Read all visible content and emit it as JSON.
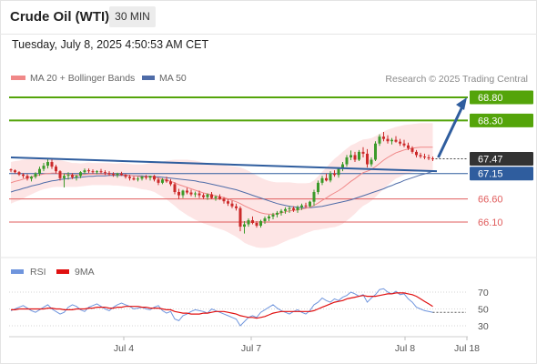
{
  "header": {
    "title": "Crude Oil (WTI)",
    "timeframe": "30 MIN"
  },
  "timestamp": "Tuesday, July 8, 2025 4:50:53 AM CET",
  "legend": {
    "ma20": "MA 20 + Bollinger Bands",
    "ma50": "MA 50",
    "rsi": "RSI",
    "rsi_ma": "9MA"
  },
  "credit": "Research © 2025 Trading Central",
  "colors": {
    "resistance": "#54a40a",
    "support": "#e05c5c",
    "arrow": "#2f5d9e",
    "ma20": "#f08888",
    "ma50": "#4f6ca8",
    "bollinger_fill": "#fde0e0",
    "rsi": "#6f95dd",
    "rsi_ma": "#e01010",
    "candle_up": "#3c9a2a",
    "candle_down": "#cc2a2a",
    "current_price_bg": "#333333",
    "pivot_bg": "#2f5d9e"
  },
  "chart_data": {
    "type": "candlestick",
    "title": "Crude Oil (WTI)",
    "timeframe": "30 MIN",
    "y_range": [
      65.7,
      69.0
    ],
    "x_ticks": [
      "Jul 4",
      "Jul 7",
      "Jul 8",
      "Jul 18"
    ],
    "price_levels": [
      {
        "label": "68.80",
        "value": 68.8,
        "kind": "resistance"
      },
      {
        "label": "68.30",
        "value": 68.3,
        "kind": "resistance"
      },
      {
        "label": "67.47",
        "value": 67.47,
        "kind": "current"
      },
      {
        "label": "67.15",
        "value": 67.15,
        "kind": "pivot"
      },
      {
        "label": "66.60",
        "value": 66.6,
        "kind": "support"
      },
      {
        "label": "66.10",
        "value": 66.1,
        "kind": "support"
      }
    ],
    "trendline": {
      "from": [
        0,
        67.5
      ],
      "to": [
        120,
        67.2
      ]
    },
    "forecast_arrow": {
      "from": [
        120,
        67.5
      ],
      "to": [
        131,
        68.8
      ]
    },
    "ohlc": [
      [
        67.24,
        67.26,
        67.18,
        67.22
      ],
      [
        67.22,
        67.24,
        67.15,
        67.18
      ],
      [
        67.18,
        67.2,
        67.1,
        67.13
      ],
      [
        67.13,
        67.16,
        67.05,
        67.1
      ],
      [
        67.1,
        67.14,
        67.0,
        67.04
      ],
      [
        67.04,
        67.1,
        66.98,
        67.08
      ],
      [
        67.08,
        67.18,
        67.04,
        67.15
      ],
      [
        67.15,
        67.3,
        67.1,
        67.25
      ],
      [
        67.25,
        67.38,
        67.2,
        67.32
      ],
      [
        67.32,
        67.48,
        67.26,
        67.4
      ],
      [
        67.4,
        67.45,
        67.25,
        67.3
      ],
      [
        67.3,
        67.34,
        67.15,
        67.2
      ],
      [
        67.2,
        67.22,
        67.0,
        67.05
      ],
      [
        67.05,
        67.15,
        66.85,
        67.1
      ],
      [
        67.1,
        67.18,
        67.02,
        67.12
      ],
      [
        67.12,
        67.16,
        67.03,
        67.07
      ],
      [
        67.07,
        67.12,
        67.0,
        67.1
      ],
      [
        67.1,
        67.2,
        67.05,
        67.18
      ],
      [
        67.18,
        67.26,
        67.14,
        67.22
      ],
      [
        67.22,
        67.26,
        67.16,
        67.2
      ],
      [
        67.2,
        67.24,
        67.15,
        67.18
      ],
      [
        67.18,
        67.22,
        67.14,
        67.2
      ],
      [
        67.2,
        67.25,
        67.15,
        67.18
      ],
      [
        67.18,
        67.22,
        67.12,
        67.16
      ],
      [
        67.16,
        67.2,
        67.1,
        67.14
      ],
      [
        67.14,
        67.18,
        67.08,
        67.12
      ],
      [
        67.12,
        67.17,
        67.06,
        67.15
      ],
      [
        67.15,
        67.19,
        67.1,
        67.12
      ],
      [
        67.12,
        67.14,
        67.04,
        67.08
      ],
      [
        67.08,
        67.12,
        67.0,
        67.05
      ],
      [
        67.05,
        67.09,
        67.0,
        67.02
      ],
      [
        67.02,
        67.08,
        66.98,
        67.04
      ],
      [
        67.04,
        67.1,
        67.0,
        67.08
      ],
      [
        67.08,
        67.12,
        67.02,
        67.06
      ],
      [
        67.06,
        67.1,
        67.0,
        67.1
      ],
      [
        67.1,
        67.12,
        66.98,
        67.02
      ],
      [
        67.02,
        67.06,
        66.9,
        66.95
      ],
      [
        66.95,
        67.05,
        66.92,
        67.02
      ],
      [
        67.02,
        67.08,
        66.95,
        66.98
      ],
      [
        66.98,
        67.03,
        66.88,
        66.92
      ],
      [
        66.92,
        66.96,
        66.7,
        66.75
      ],
      [
        66.75,
        66.82,
        66.6,
        66.68
      ],
      [
        66.68,
        66.8,
        66.62,
        66.78
      ],
      [
        66.78,
        66.84,
        66.7,
        66.74
      ],
      [
        66.74,
        66.8,
        66.66,
        66.7
      ],
      [
        66.7,
        66.76,
        66.64,
        66.72
      ],
      [
        66.72,
        66.78,
        66.62,
        66.68
      ],
      [
        66.68,
        66.72,
        66.6,
        66.64
      ],
      [
        66.64,
        66.72,
        66.58,
        66.7
      ],
      [
        66.7,
        66.75,
        66.6,
        66.62
      ],
      [
        66.62,
        66.68,
        66.56,
        66.65
      ],
      [
        66.65,
        66.7,
        66.58,
        66.6
      ],
      [
        66.6,
        66.64,
        66.5,
        66.55
      ],
      [
        66.55,
        66.6,
        66.45,
        66.5
      ],
      [
        66.5,
        66.56,
        66.4,
        66.44
      ],
      [
        66.44,
        66.5,
        66.35,
        66.4
      ],
      [
        66.4,
        66.44,
        65.9,
        66.0
      ],
      [
        66.0,
        66.12,
        65.85,
        66.05
      ],
      [
        66.05,
        66.18,
        66.0,
        66.14
      ],
      [
        66.14,
        66.22,
        66.05,
        66.08
      ],
      [
        66.08,
        66.12,
        65.98,
        66.02
      ],
      [
        66.02,
        66.15,
        65.98,
        66.12
      ],
      [
        66.12,
        66.22,
        66.06,
        66.18
      ],
      [
        66.18,
        66.26,
        66.12,
        66.22
      ],
      [
        66.22,
        66.3,
        66.16,
        66.26
      ],
      [
        66.26,
        66.34,
        66.2,
        66.3
      ],
      [
        66.3,
        66.38,
        66.24,
        66.34
      ],
      [
        66.34,
        66.42,
        66.28,
        66.38
      ],
      [
        66.38,
        66.45,
        66.3,
        66.4
      ],
      [
        66.4,
        66.44,
        66.32,
        66.36
      ],
      [
        66.36,
        66.46,
        66.3,
        66.42
      ],
      [
        66.42,
        66.5,
        66.36,
        66.46
      ],
      [
        66.46,
        66.52,
        66.4,
        66.44
      ],
      [
        66.44,
        66.56,
        66.42,
        66.54
      ],
      [
        66.54,
        66.8,
        66.45,
        66.75
      ],
      [
        66.75,
        67.0,
        66.7,
        66.95
      ],
      [
        66.95,
        67.1,
        66.9,
        67.05
      ],
      [
        67.05,
        67.15,
        66.98,
        67.0
      ],
      [
        67.0,
        67.2,
        66.96,
        67.15
      ],
      [
        67.15,
        67.22,
        67.08,
        67.12
      ],
      [
        67.12,
        67.28,
        67.06,
        67.25
      ],
      [
        67.25,
        67.4,
        67.2,
        67.35
      ],
      [
        67.35,
        67.55,
        67.3,
        67.5
      ],
      [
        67.5,
        67.65,
        67.44,
        67.55
      ],
      [
        67.55,
        67.62,
        67.4,
        67.45
      ],
      [
        67.45,
        67.66,
        67.42,
        67.62
      ],
      [
        67.62,
        67.72,
        67.5,
        67.58
      ],
      [
        67.58,
        67.68,
        67.28,
        67.35
      ],
      [
        67.35,
        67.5,
        67.3,
        67.45
      ],
      [
        67.45,
        67.85,
        67.42,
        67.8
      ],
      [
        67.8,
        68.0,
        67.75,
        67.95
      ],
      [
        67.95,
        68.05,
        67.85,
        67.9
      ],
      [
        67.9,
        67.98,
        67.8,
        67.85
      ],
      [
        67.85,
        67.92,
        67.78,
        67.88
      ],
      [
        67.88,
        67.96,
        67.82,
        67.84
      ],
      [
        67.84,
        67.9,
        67.75,
        67.8
      ],
      [
        67.8,
        67.88,
        67.72,
        67.76
      ],
      [
        67.76,
        67.82,
        67.66,
        67.7
      ],
      [
        67.7,
        67.74,
        67.58,
        67.62
      ],
      [
        67.62,
        67.66,
        67.5,
        67.55
      ],
      [
        67.55,
        67.6,
        67.48,
        67.52
      ],
      [
        67.52,
        67.58,
        67.46,
        67.5
      ],
      [
        67.5,
        67.56,
        67.44,
        67.48
      ],
      [
        67.48,
        67.52,
        67.42,
        67.47
      ]
    ],
    "ma20": [
      66.95,
      66.98,
      67.0,
      67.03,
      67.06,
      67.08,
      67.1,
      67.12,
      67.14,
      67.15,
      67.16,
      67.16,
      67.15,
      67.14,
      67.13,
      67.12,
      67.12,
      67.12,
      67.13,
      67.14,
      67.14,
      67.14,
      67.14,
      67.14,
      67.14,
      67.13,
      67.13,
      67.13,
      67.12,
      67.11,
      67.1,
      67.09,
      67.08,
      67.08,
      67.08,
      67.07,
      67.05,
      67.03,
      67.01,
      66.98,
      66.95,
      66.91,
      66.88,
      66.85,
      66.82,
      66.79,
      66.76,
      66.73,
      66.71,
      66.69,
      66.67,
      66.65,
      66.63,
      66.6,
      66.57,
      66.54,
      66.5,
      66.45,
      66.41,
      66.37,
      66.33,
      66.3,
      66.28,
      66.27,
      66.27,
      66.28,
      66.3,
      66.32,
      66.34,
      66.35,
      66.36,
      66.38,
      66.4,
      66.42,
      66.46,
      66.51,
      66.57,
      66.62,
      66.68,
      66.73,
      66.78,
      66.84,
      66.91,
      66.98,
      67.04,
      67.11,
      67.17,
      67.2,
      67.24,
      67.3,
      67.37,
      67.44,
      67.5,
      67.55,
      67.6,
      67.63,
      67.66,
      67.68,
      67.7,
      67.71,
      67.72,
      67.72,
      67.72,
      67.72
    ],
    "ma50": [
      66.75,
      66.78,
      66.8,
      66.83,
      66.85,
      66.88,
      66.9,
      66.92,
      66.95,
      66.97,
      66.99,
      67.0,
      67.02,
      67.03,
      67.04,
      67.05,
      67.06,
      67.07,
      67.08,
      67.09,
      67.09,
      67.1,
      67.1,
      67.1,
      67.11,
      67.11,
      67.11,
      67.11,
      67.11,
      67.11,
      67.1,
      67.1,
      67.1,
      67.09,
      67.09,
      67.08,
      67.08,
      67.07,
      67.06,
      67.05,
      67.04,
      67.03,
      67.02,
      67.01,
      67.0,
      66.99,
      66.97,
      66.96,
      66.94,
      66.92,
      66.9,
      66.88,
      66.86,
      66.84,
      66.82,
      66.8,
      66.77,
      66.74,
      66.71,
      66.68,
      66.65,
      66.62,
      66.59,
      66.56,
      66.53,
      66.5,
      66.48,
      66.46,
      66.44,
      66.43,
      66.42,
      66.41,
      66.41,
      66.41,
      66.42,
      66.43,
      66.44,
      66.46,
      66.48,
      66.5,
      66.52,
      66.54,
      66.56,
      66.58,
      66.61,
      66.64,
      66.67,
      66.7,
      66.73,
      66.76,
      66.79,
      66.82,
      66.86,
      66.89,
      66.93,
      66.96,
      67.0,
      67.03,
      67.06,
      67.09,
      67.12,
      67.14,
      67.17,
      67.2
    ],
    "bollinger_width": [
      0.45,
      0.44,
      0.43,
      0.42,
      0.4,
      0.38,
      0.36,
      0.34,
      0.33,
      0.32,
      0.31,
      0.3,
      0.29,
      0.28,
      0.27,
      0.26,
      0.26,
      0.25,
      0.25,
      0.25,
      0.24,
      0.24,
      0.24,
      0.24,
      0.24,
      0.24,
      0.24,
      0.25,
      0.25,
      0.25,
      0.25,
      0.26,
      0.27,
      0.28,
      0.3,
      0.32,
      0.35,
      0.38,
      0.42,
      0.46,
      0.5,
      0.54,
      0.57,
      0.6,
      0.62,
      0.64,
      0.65,
      0.66,
      0.67,
      0.68,
      0.69,
      0.7,
      0.71,
      0.72,
      0.74,
      0.76,
      0.78,
      0.8,
      0.8,
      0.79,
      0.78,
      0.76,
      0.74,
      0.72,
      0.7,
      0.68,
      0.66,
      0.64,
      0.62,
      0.6,
      0.58,
      0.56,
      0.54,
      0.53,
      0.54,
      0.58,
      0.62,
      0.66,
      0.7,
      0.74,
      0.76,
      0.78,
      0.78,
      0.78,
      0.76,
      0.74,
      0.72,
      0.7,
      0.68,
      0.66,
      0.64,
      0.62,
      0.6,
      0.58,
      0.56,
      0.55,
      0.54,
      0.53,
      0.52,
      0.52,
      0.52,
      0.52,
      0.52,
      0.52
    ],
    "rsi_levels": [
      70,
      50,
      30
    ],
    "rsi": [
      48,
      50,
      52,
      54,
      51,
      48,
      46,
      49,
      52,
      55,
      50,
      47,
      44,
      46,
      52,
      55,
      53,
      49,
      47,
      52,
      54,
      56,
      53,
      50,
      48,
      52,
      55,
      57,
      55,
      53,
      50,
      51,
      52,
      50,
      49,
      52,
      54,
      48,
      45,
      47,
      38,
      36,
      42,
      44,
      47,
      49,
      48,
      47,
      45,
      50,
      48,
      46,
      44,
      42,
      40,
      38,
      30,
      35,
      40,
      42,
      40,
      46,
      49,
      52,
      55,
      51,
      48,
      46,
      44,
      47,
      49,
      46,
      44,
      48,
      55,
      58,
      63,
      60,
      58,
      62,
      60,
      64,
      66,
      70,
      68,
      65,
      67,
      58,
      63,
      67,
      73,
      74,
      70,
      68,
      71,
      67,
      68,
      62,
      58,
      52,
      50,
      48,
      47,
      46
    ],
    "rsi_ma": [
      49,
      49,
      50,
      50,
      50,
      50,
      50,
      50,
      50,
      51,
      51,
      50,
      50,
      49,
      49,
      49,
      50,
      50,
      50,
      51,
      51,
      52,
      52,
      52,
      51,
      51,
      52,
      52,
      53,
      53,
      53,
      53,
      52,
      52,
      51,
      51,
      51,
      50,
      49,
      49,
      47,
      46,
      45,
      45,
      44,
      44,
      44,
      45,
      45,
      46,
      47,
      47,
      47,
      46,
      45,
      44,
      42,
      41,
      40,
      40,
      39,
      40,
      41,
      43,
      45,
      46,
      47,
      47,
      47,
      47,
      47,
      47,
      47,
      47,
      48,
      50,
      52,
      54,
      56,
      58,
      59,
      60,
      62,
      63,
      64,
      65,
      66,
      65,
      65,
      65,
      66,
      67,
      68,
      68,
      69,
      69,
      69,
      68,
      67,
      65,
      62,
      59,
      56,
      53
    ]
  }
}
